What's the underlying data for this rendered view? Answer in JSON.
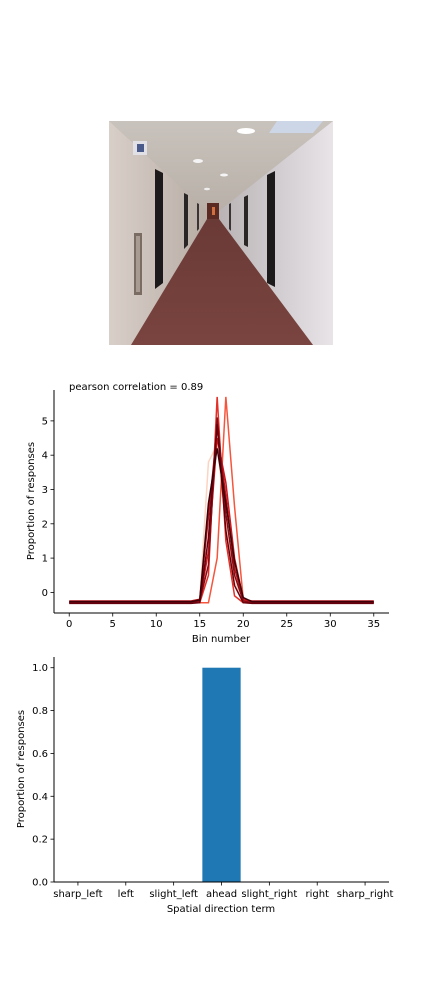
{
  "chart_data": [
    {
      "type": "line",
      "annotation": "pearson correlation = 0.89",
      "xlabel": "Bin number",
      "ylabel": "Proportion of responses",
      "xlim": [
        -1.75,
        36.75
      ],
      "ylim": [
        -0.6,
        5.9
      ],
      "xticks": [
        0,
        5,
        10,
        15,
        20,
        25,
        30,
        35
      ],
      "yticks": [
        0,
        1,
        2,
        3,
        4,
        5
      ],
      "x": [
        0,
        1,
        2,
        3,
        4,
        5,
        6,
        7,
        8,
        9,
        10,
        11,
        12,
        13,
        14,
        15,
        16,
        17,
        18,
        19,
        20,
        21,
        22,
        23,
        24,
        25,
        26,
        27,
        28,
        29,
        30,
        31,
        32,
        33,
        34,
        35
      ],
      "series": [
        {
          "color": "#fcd4c1",
          "values": [
            -0.28,
            -0.28,
            -0.28,
            -0.28,
            -0.28,
            -0.28,
            -0.28,
            -0.28,
            -0.28,
            -0.28,
            -0.28,
            -0.28,
            -0.28,
            -0.28,
            -0.28,
            -0.2,
            3.8,
            4.3,
            2.0,
            0.3,
            -0.25,
            -0.28,
            -0.28,
            -0.28,
            -0.28,
            -0.28,
            -0.28,
            -0.28,
            -0.28,
            -0.28,
            -0.28,
            -0.28,
            -0.28,
            -0.28,
            -0.28,
            -0.28
          ]
        },
        {
          "color": "#f6553c",
          "values": [
            -0.3,
            -0.3,
            -0.3,
            -0.3,
            -0.3,
            -0.3,
            -0.3,
            -0.3,
            -0.3,
            -0.3,
            -0.3,
            -0.3,
            -0.3,
            -0.3,
            -0.3,
            -0.3,
            -0.3,
            1.0,
            5.7,
            2.5,
            -0.2,
            -0.3,
            -0.3,
            -0.3,
            -0.3,
            -0.3,
            -0.3,
            -0.3,
            -0.3,
            -0.3,
            -0.3,
            -0.3,
            -0.3,
            -0.3,
            -0.3,
            -0.3
          ]
        },
        {
          "color": "#e32f27",
          "values": [
            -0.3,
            -0.3,
            -0.3,
            -0.3,
            -0.3,
            -0.3,
            -0.3,
            -0.3,
            -0.3,
            -0.3,
            -0.3,
            -0.3,
            -0.3,
            -0.3,
            -0.3,
            -0.3,
            0.5,
            5.7,
            1.5,
            -0.1,
            -0.3,
            -0.3,
            -0.3,
            -0.3,
            -0.3,
            -0.3,
            -0.3,
            -0.3,
            -0.3,
            -0.3,
            -0.3,
            -0.3,
            -0.3,
            -0.3,
            -0.3,
            -0.3
          ]
        },
        {
          "color": "#b11218",
          "values": [
            -0.25,
            -0.25,
            -0.25,
            -0.25,
            -0.25,
            -0.25,
            -0.25,
            -0.25,
            -0.25,
            -0.25,
            -0.25,
            -0.25,
            -0.25,
            -0.25,
            -0.25,
            -0.2,
            2.2,
            4.8,
            2.8,
            0.7,
            -0.2,
            -0.25,
            -0.25,
            -0.25,
            -0.25,
            -0.25,
            -0.25,
            -0.25,
            -0.25,
            -0.25,
            -0.25,
            -0.25,
            -0.25,
            -0.25,
            -0.25,
            -0.25
          ]
        },
        {
          "color": "#cb181d",
          "values": [
            -0.28,
            -0.28,
            -0.28,
            -0.28,
            -0.28,
            -0.28,
            -0.28,
            -0.28,
            -0.28,
            -0.28,
            -0.28,
            -0.28,
            -0.28,
            -0.28,
            -0.28,
            -0.25,
            1.2,
            4.5,
            3.2,
            1.0,
            -0.2,
            -0.28,
            -0.28,
            -0.28,
            -0.28,
            -0.28,
            -0.28,
            -0.28,
            -0.28,
            -0.28,
            -0.28,
            -0.28,
            -0.28,
            -0.28,
            -0.28,
            -0.28
          ]
        },
        {
          "color": "#8a0a12",
          "values": [
            -0.3,
            -0.3,
            -0.3,
            -0.3,
            -0.3,
            -0.3,
            -0.3,
            -0.3,
            -0.3,
            -0.3,
            -0.3,
            -0.3,
            -0.3,
            -0.3,
            -0.3,
            -0.25,
            0.8,
            5.1,
            2.3,
            0.5,
            -0.25,
            -0.3,
            -0.3,
            -0.3,
            -0.3,
            -0.3,
            -0.3,
            -0.3,
            -0.3,
            -0.3,
            -0.3,
            -0.3,
            -0.3,
            -0.3,
            -0.3,
            -0.3
          ]
        },
        {
          "color": "#67000d",
          "values": [
            -0.32,
            -0.32,
            -0.32,
            -0.32,
            -0.32,
            -0.32,
            -0.32,
            -0.32,
            -0.32,
            -0.32,
            -0.32,
            -0.32,
            -0.32,
            -0.32,
            -0.32,
            -0.3,
            1.6,
            4.9,
            1.8,
            0.2,
            -0.3,
            -0.32,
            -0.32,
            -0.32,
            -0.32,
            -0.32,
            -0.32,
            -0.32,
            -0.32,
            -0.32,
            -0.32,
            -0.32,
            -0.32,
            -0.32,
            -0.32,
            -0.32
          ]
        },
        {
          "color": "#3d0008",
          "values": [
            -0.27,
            -0.27,
            -0.27,
            -0.27,
            -0.27,
            -0.27,
            -0.27,
            -0.27,
            -0.27,
            -0.27,
            -0.27,
            -0.27,
            -0.27,
            -0.27,
            -0.27,
            -0.22,
            2.6,
            4.2,
            2.6,
            0.9,
            -0.15,
            -0.27,
            -0.27,
            -0.27,
            -0.27,
            -0.27,
            -0.27,
            -0.27,
            -0.27,
            -0.27,
            -0.27,
            -0.27,
            -0.27,
            -0.27,
            -0.27,
            -0.27
          ]
        }
      ]
    },
    {
      "type": "bar",
      "categories": [
        "sharp_left",
        "left",
        "slight_left",
        "ahead",
        "slight_right",
        "right",
        "sharp_right"
      ],
      "values": [
        0,
        0,
        0,
        1.0,
        0,
        0,
        0
      ],
      "color": "#1f77b4",
      "xlabel": "Spatial direction term",
      "ylabel": "Proportion of responses",
      "ylim": [
        0,
        1.05
      ],
      "yticks": [
        "0.0",
        "0.2",
        "0.4",
        "0.6",
        "0.8",
        "1.0"
      ]
    }
  ]
}
